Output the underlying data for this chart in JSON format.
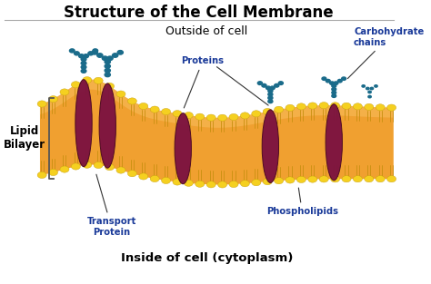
{
  "title": "Structure of the Cell Membrane",
  "outside_label": "Outside of cell",
  "inside_label": "Inside of cell (cytoplasm)",
  "lipid_bilayer_label": "Lipid\nBilayer",
  "proteins_label": "Proteins",
  "transport_protein_label": "Transport\nProtein",
  "phospholipids_label": "Phospholipids",
  "carbohydrate_label": "Carbohydrate\nchains",
  "bg_color": "#ffffff",
  "title_color": "#000000",
  "label_color": "#1a3a99",
  "membrane_fill": "#f0a830",
  "membrane_light": "#f8c870",
  "phospholipid_head_color": "#f5d020",
  "protein_color": "#7a1040",
  "carbohydrate_color": "#1a6b8a",
  "bracket_color": "#555555",
  "line_color": "#aaaaaa"
}
